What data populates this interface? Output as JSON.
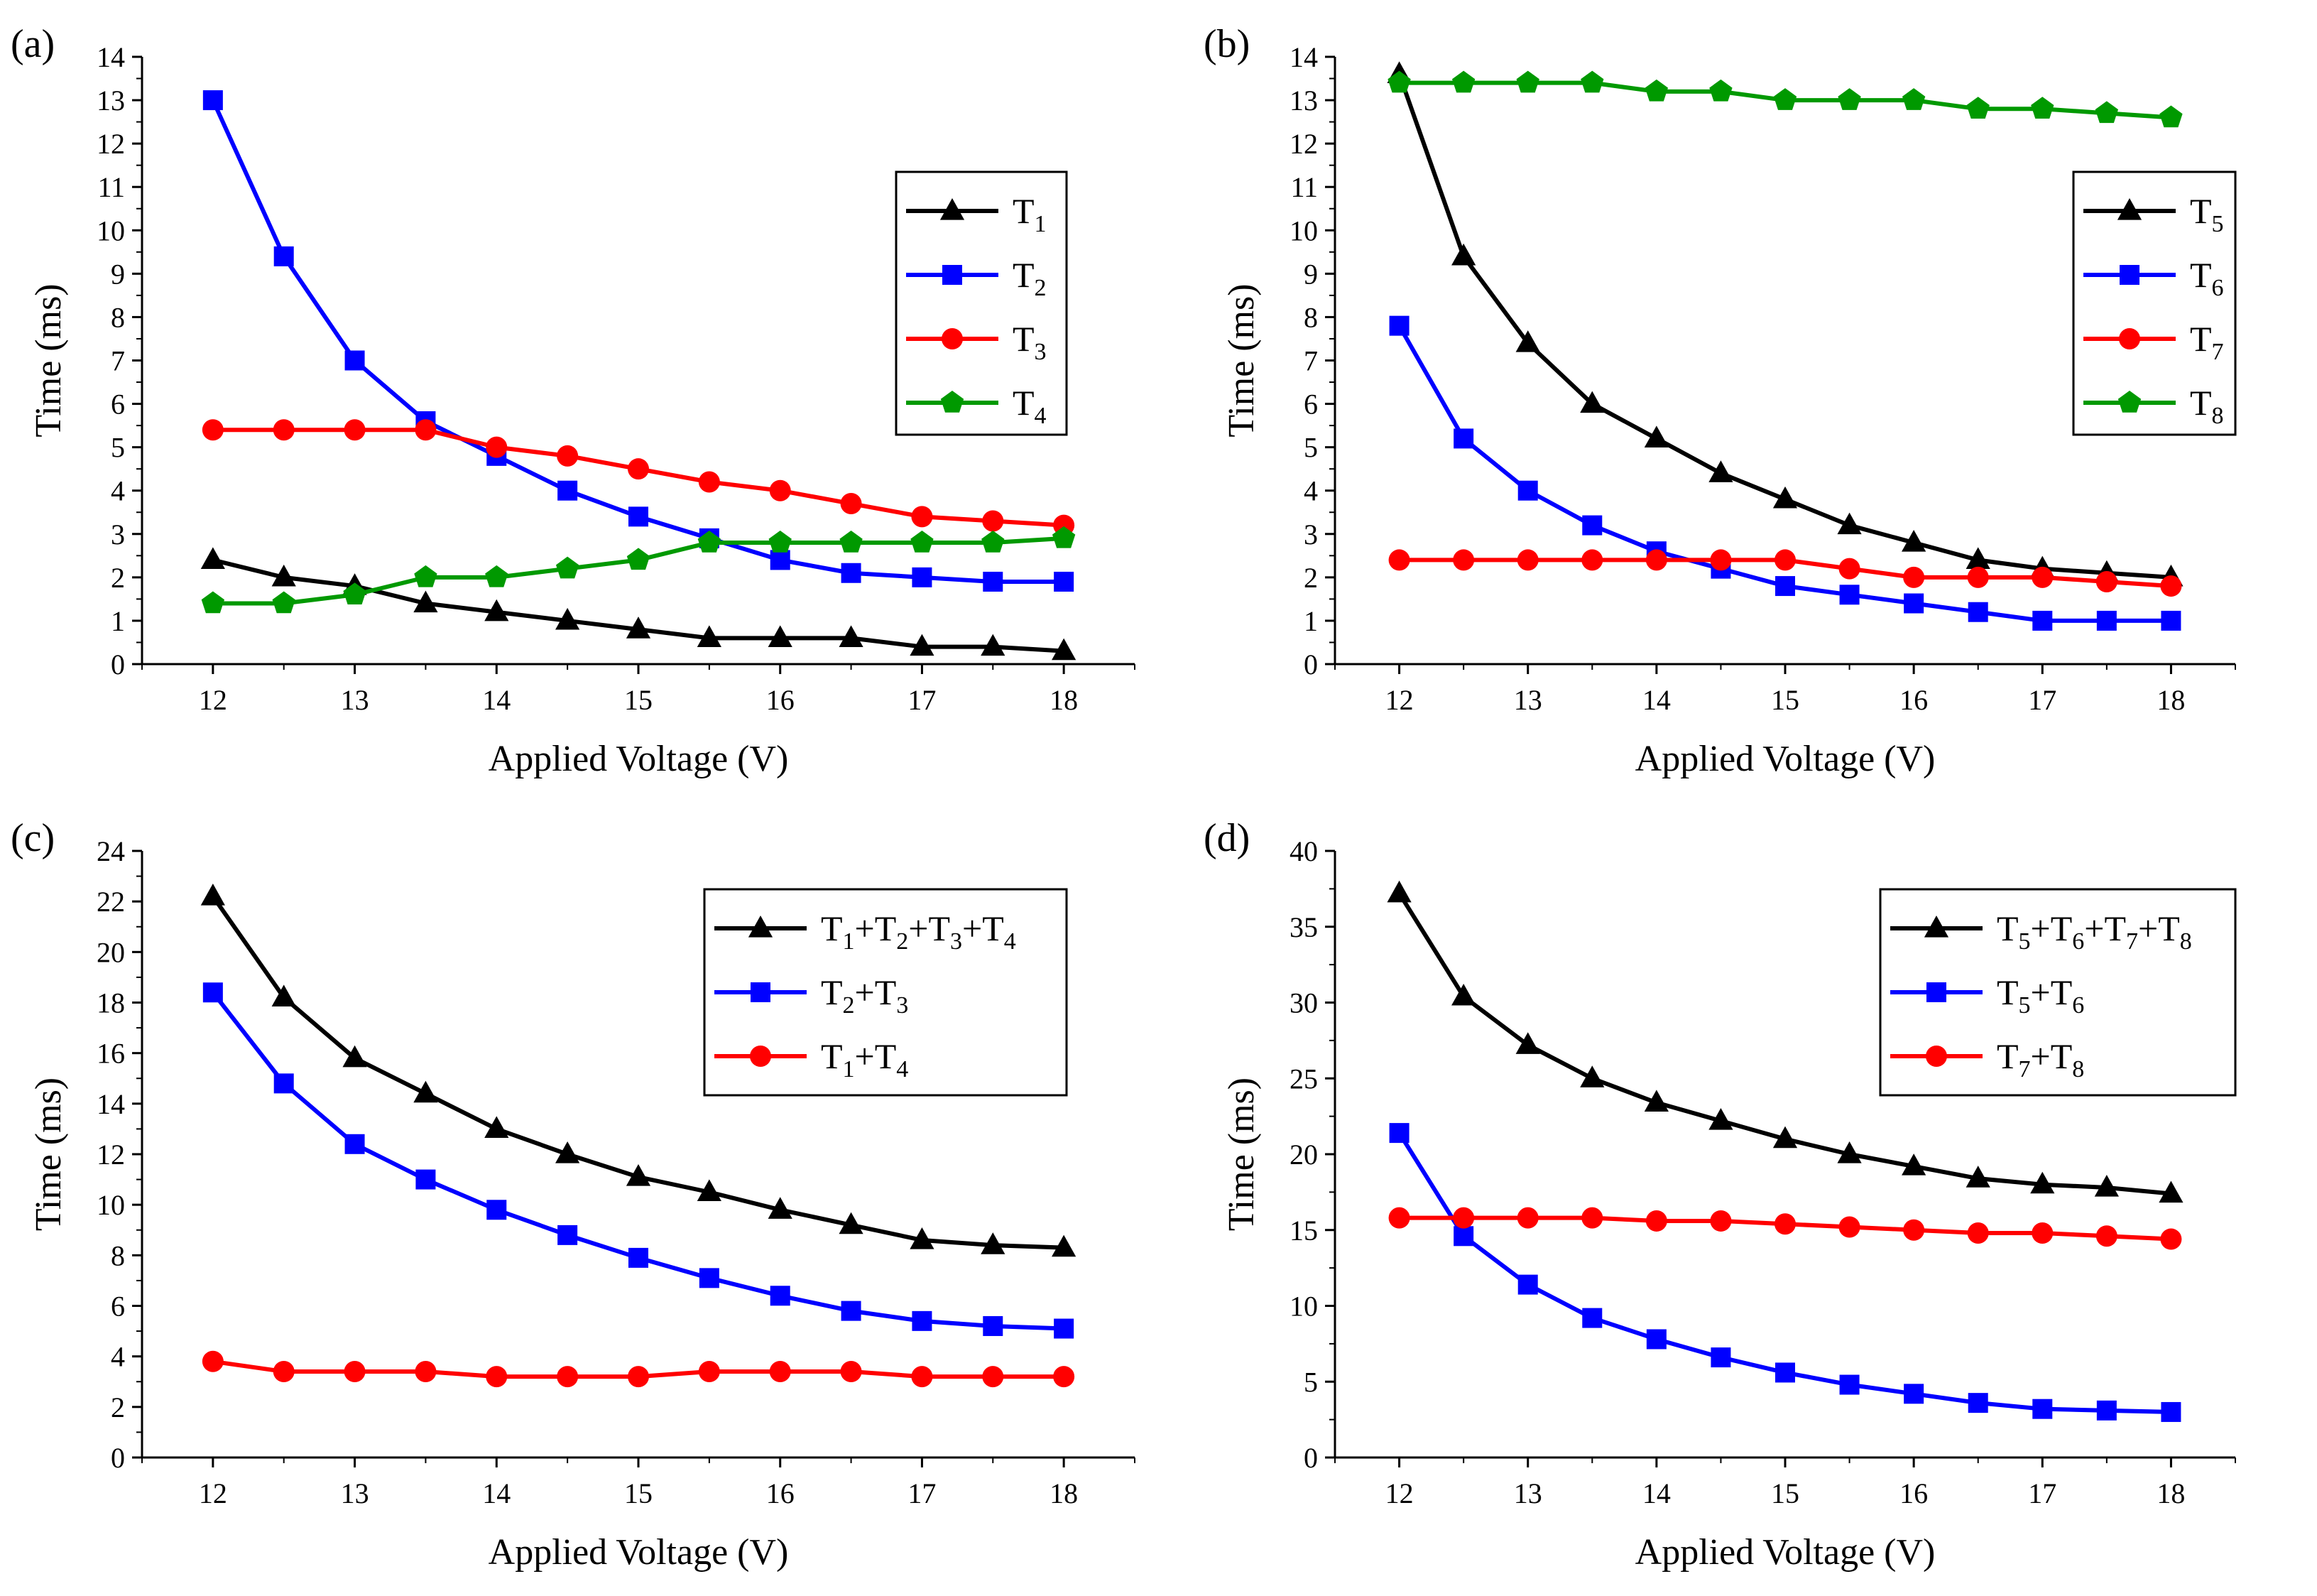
{
  "chart_data": [
    {
      "panel_label": "(a)",
      "type": "line",
      "xlabel": "Applied Voltage (V)",
      "ylabel": "Time (ms)",
      "x": [
        12,
        12.5,
        13,
        13.5,
        14,
        14.5,
        15,
        15.5,
        16,
        16.5,
        17,
        17.5,
        18
      ],
      "xlim": [
        11.5,
        18.5
      ],
      "ylim": [
        0,
        14
      ],
      "xticks": [
        12,
        13,
        14,
        15,
        16,
        17,
        18
      ],
      "yticks": [
        0,
        1,
        2,
        3,
        4,
        5,
        6,
        7,
        8,
        9,
        10,
        11,
        12,
        13,
        14
      ],
      "legend_position": "upper-right",
      "series": [
        {
          "name": "T1",
          "legend": [
            {
              "t": "T",
              "sub": false
            },
            {
              "t": "1",
              "sub": true
            }
          ],
          "color": "#000000",
          "marker": "triangle",
          "values": [
            2.4,
            2.0,
            1.8,
            1.4,
            1.2,
            1.0,
            0.8,
            0.6,
            0.6,
            0.6,
            0.4,
            0.4,
            0.3
          ]
        },
        {
          "name": "T2",
          "legend": [
            {
              "t": "T",
              "sub": false
            },
            {
              "t": "2",
              "sub": true
            }
          ],
          "color": "#0000ff",
          "marker": "square",
          "values": [
            13.0,
            9.4,
            7.0,
            5.6,
            4.8,
            4.0,
            3.4,
            2.9,
            2.4,
            2.1,
            2.0,
            1.9,
            1.9
          ]
        },
        {
          "name": "T3",
          "legend": [
            {
              "t": "T",
              "sub": false
            },
            {
              "t": "3",
              "sub": true
            }
          ],
          "color": "#ff0000",
          "marker": "circle",
          "values": [
            5.4,
            5.4,
            5.4,
            5.4,
            5.0,
            4.8,
            4.5,
            4.2,
            4.0,
            3.7,
            3.4,
            3.3,
            3.2
          ]
        },
        {
          "name": "T4",
          "legend": [
            {
              "t": "T",
              "sub": false
            },
            {
              "t": "4",
              "sub": true
            }
          ],
          "color": "#009900",
          "marker": "pentagon",
          "values": [
            1.4,
            1.4,
            1.6,
            2.0,
            2.0,
            2.2,
            2.4,
            2.8,
            2.8,
            2.8,
            2.8,
            2.8,
            2.9
          ]
        }
      ]
    },
    {
      "panel_label": "(b)",
      "type": "line",
      "xlabel": "Applied Voltage (V)",
      "ylabel": "Time (ms)",
      "x": [
        12,
        12.5,
        13,
        13.5,
        14,
        14.5,
        15,
        15.5,
        16,
        16.5,
        17,
        17.5,
        18
      ],
      "xlim": [
        11.5,
        18.5
      ],
      "ylim": [
        0,
        14
      ],
      "xticks": [
        12,
        13,
        14,
        15,
        16,
        17,
        18
      ],
      "yticks": [
        0,
        1,
        2,
        3,
        4,
        5,
        6,
        7,
        8,
        9,
        10,
        11,
        12,
        13,
        14
      ],
      "legend_position": "upper-right",
      "series": [
        {
          "name": "T5",
          "legend": [
            {
              "t": "T",
              "sub": false
            },
            {
              "t": "5",
              "sub": true
            }
          ],
          "color": "#000000",
          "marker": "triangle",
          "values": [
            13.6,
            9.4,
            7.4,
            6.0,
            5.2,
            4.4,
            3.8,
            3.2,
            2.8,
            2.4,
            2.2,
            2.1,
            2.0
          ]
        },
        {
          "name": "T6",
          "legend": [
            {
              "t": "T",
              "sub": false
            },
            {
              "t": "6",
              "sub": true
            }
          ],
          "color": "#0000ff",
          "marker": "square",
          "values": [
            7.8,
            5.2,
            4.0,
            3.2,
            2.6,
            2.2,
            1.8,
            1.6,
            1.4,
            1.2,
            1.0,
            1.0,
            1.0
          ]
        },
        {
          "name": "T7",
          "legend": [
            {
              "t": "T",
              "sub": false
            },
            {
              "t": "7",
              "sub": true
            }
          ],
          "color": "#ff0000",
          "marker": "circle",
          "values": [
            2.4,
            2.4,
            2.4,
            2.4,
            2.4,
            2.4,
            2.4,
            2.2,
            2.0,
            2.0,
            2.0,
            1.9,
            1.8
          ]
        },
        {
          "name": "T8",
          "legend": [
            {
              "t": "T",
              "sub": false
            },
            {
              "t": "8",
              "sub": true
            }
          ],
          "color": "#009900",
          "marker": "pentagon",
          "values": [
            13.4,
            13.4,
            13.4,
            13.4,
            13.2,
            13.2,
            13.0,
            13.0,
            13.0,
            12.8,
            12.8,
            12.7,
            12.6
          ]
        }
      ]
    },
    {
      "panel_label": "(c)",
      "type": "line",
      "xlabel": "Applied Voltage (V)",
      "ylabel": "Time (ms)",
      "x": [
        12,
        12.5,
        13,
        13.5,
        14,
        14.5,
        15,
        15.5,
        16,
        16.5,
        17,
        17.5,
        18
      ],
      "xlim": [
        11.5,
        18.5
      ],
      "ylim": [
        0,
        24
      ],
      "xticks": [
        12,
        13,
        14,
        15,
        16,
        17,
        18
      ],
      "yticks": [
        0,
        2,
        4,
        6,
        8,
        10,
        12,
        14,
        16,
        18,
        20,
        22,
        24
      ],
      "legend_position": "upper-right",
      "series": [
        {
          "name": "T1+T2+T3+T4",
          "legend": [
            {
              "t": "T",
              "sub": false
            },
            {
              "t": "1",
              "sub": true
            },
            {
              "t": "+T",
              "sub": false
            },
            {
              "t": "2",
              "sub": true
            },
            {
              "t": "+T",
              "sub": false
            },
            {
              "t": "3",
              "sub": true
            },
            {
              "t": "+T",
              "sub": false
            },
            {
              "t": "4",
              "sub": true
            }
          ],
          "color": "#000000",
          "marker": "triangle",
          "values": [
            22.2,
            18.2,
            15.8,
            14.4,
            13.0,
            12.0,
            11.1,
            10.5,
            9.8,
            9.2,
            8.6,
            8.4,
            8.3
          ]
        },
        {
          "name": "T2+T3",
          "legend": [
            {
              "t": "T",
              "sub": false
            },
            {
              "t": "2",
              "sub": true
            },
            {
              "t": "+T",
              "sub": false
            },
            {
              "t": "3",
              "sub": true
            }
          ],
          "color": "#0000ff",
          "marker": "square",
          "values": [
            18.4,
            14.8,
            12.4,
            11.0,
            9.8,
            8.8,
            7.9,
            7.1,
            6.4,
            5.8,
            5.4,
            5.2,
            5.1
          ]
        },
        {
          "name": "T1+T4",
          "legend": [
            {
              "t": "T",
              "sub": false
            },
            {
              "t": "1",
              "sub": true
            },
            {
              "t": "+T",
              "sub": false
            },
            {
              "t": "4",
              "sub": true
            }
          ],
          "color": "#ff0000",
          "marker": "circle",
          "values": [
            3.8,
            3.4,
            3.4,
            3.4,
            3.2,
            3.2,
            3.2,
            3.4,
            3.4,
            3.4,
            3.2,
            3.2,
            3.2
          ]
        }
      ]
    },
    {
      "panel_label": "(d)",
      "type": "line",
      "xlabel": "Applied Voltage (V)",
      "ylabel": "Time (ms)",
      "x": [
        12,
        12.5,
        13,
        13.5,
        14,
        14.5,
        15,
        15.5,
        16,
        16.5,
        17,
        17.5,
        18
      ],
      "xlim": [
        11.5,
        18.5
      ],
      "ylim": [
        0,
        40
      ],
      "xticks": [
        12,
        13,
        14,
        15,
        16,
        17,
        18
      ],
      "yticks": [
        0,
        5,
        10,
        15,
        20,
        25,
        30,
        35,
        40
      ],
      "legend_position": "upper-right",
      "series": [
        {
          "name": "T5+T6+T7+T8",
          "legend": [
            {
              "t": "T",
              "sub": false
            },
            {
              "t": "5",
              "sub": true
            },
            {
              "t": "+T",
              "sub": false
            },
            {
              "t": "6",
              "sub": true
            },
            {
              "t": "+T",
              "sub": false
            },
            {
              "t": "7",
              "sub": true
            },
            {
              "t": "+T",
              "sub": false
            },
            {
              "t": "8",
              "sub": true
            }
          ],
          "color": "#000000",
          "marker": "triangle",
          "values": [
            37.2,
            30.4,
            27.2,
            25.0,
            23.4,
            22.2,
            21.0,
            20.0,
            19.2,
            18.4,
            18.0,
            17.8,
            17.4
          ]
        },
        {
          "name": "T5+T6",
          "legend": [
            {
              "t": "T",
              "sub": false
            },
            {
              "t": "5",
              "sub": true
            },
            {
              "t": "+T",
              "sub": false
            },
            {
              "t": "6",
              "sub": true
            }
          ],
          "color": "#0000ff",
          "marker": "square",
          "values": [
            21.4,
            14.6,
            11.4,
            9.2,
            7.8,
            6.6,
            5.6,
            4.8,
            4.2,
            3.6,
            3.2,
            3.1,
            3.0
          ]
        },
        {
          "name": "T7+T8",
          "legend": [
            {
              "t": "T",
              "sub": false
            },
            {
              "t": "7",
              "sub": true
            },
            {
              "t": "+T",
              "sub": false
            },
            {
              "t": "8",
              "sub": true
            }
          ],
          "color": "#ff0000",
          "marker": "circle",
          "values": [
            15.8,
            15.8,
            15.8,
            15.8,
            15.6,
            15.6,
            15.4,
            15.2,
            15.0,
            14.8,
            14.8,
            14.6,
            14.4
          ]
        }
      ]
    }
  ]
}
